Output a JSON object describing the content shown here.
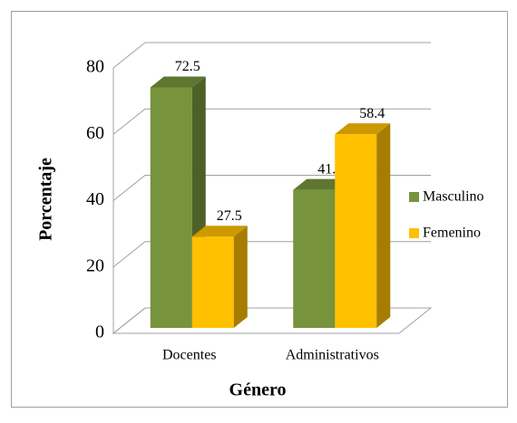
{
  "chart_data": {
    "type": "bar",
    "three_d": true,
    "xlabel": "Género",
    "ylabel": "Porcentaje",
    "categories": [
      "Docentes",
      "Administrativos"
    ],
    "series": [
      {
        "name": "Masculino",
        "color": "#77933c",
        "values": [
          72.5,
          41.6
        ]
      },
      {
        "name": "Femenino",
        "color": "#ffc000",
        "values": [
          27.5,
          58.4
        ]
      }
    ],
    "ylim": [
      0,
      80
    ],
    "yticks": [
      0,
      20,
      40,
      60,
      80
    ],
    "grid": true,
    "legend": "right"
  }
}
